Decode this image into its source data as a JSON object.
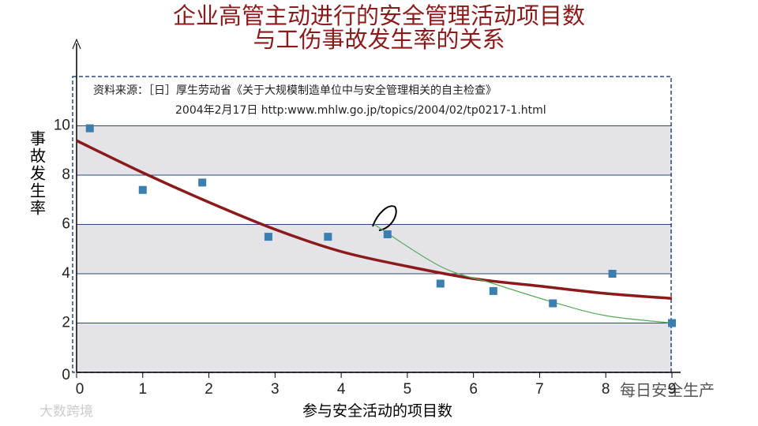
{
  "chart_data": {
    "type": "scatter",
    "title": "企业高管主动进行的安全管理活动项目数",
    "subtitle": "与工伤事故发生率的关系",
    "source_line1": "资料来源：［日］厚生劳动省《关于大规模制造单位中与安全管理相关的自主检查》",
    "source_line2": "2004年2月17日 http:www.mhlw.go.jp/topics/2004/02/tp0217-1.html",
    "xlabel": "参与安全活动的项目数",
    "ylabel": "事故发生率",
    "watermark_left": "大数跨境",
    "watermark_right": "每日安全生产",
    "xlim": [
      0,
      9
    ],
    "xticks": [
      0,
      1,
      2,
      3,
      4,
      5,
      6,
      7,
      8,
      9
    ],
    "ylim": [
      0,
      12
    ],
    "yticks": [
      0,
      2,
      4,
      6,
      8,
      10
    ],
    "grid": true,
    "series": [
      {
        "kind": "points",
        "color": "#3a7fb0",
        "x": [
          0.2,
          1.0,
          1.9,
          2.9,
          3.8,
          4.7,
          5.5,
          6.3,
          7.2,
          8.1,
          9.0
        ],
        "values": [
          9.9,
          7.4,
          7.7,
          5.5,
          5.5,
          5.6,
          3.6,
          3.3,
          2.8,
          4.0,
          2.0
        ]
      },
      {
        "kind": "curve",
        "color": "#8b1a1a",
        "x": [
          0,
          1,
          2,
          3,
          4,
          5,
          6,
          7,
          8,
          9
        ],
        "values": [
          9.4,
          8.1,
          6.9,
          5.8,
          4.9,
          4.3,
          3.8,
          3.5,
          3.2,
          3.0
        ]
      },
      {
        "kind": "curve",
        "color": "#5aa85a",
        "x": [
          4.5,
          5.5,
          6.3,
          7.2,
          8.0,
          9.0
        ],
        "values": [
          6.0,
          4.3,
          3.6,
          2.85,
          2.3,
          2.0
        ]
      }
    ]
  }
}
